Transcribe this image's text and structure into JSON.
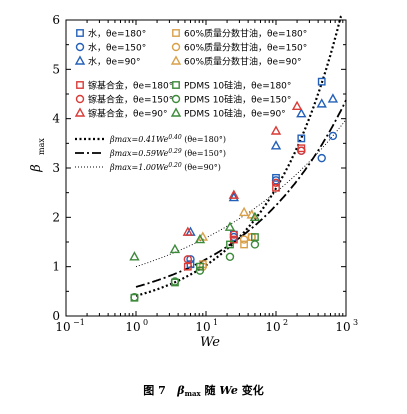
{
  "chart_data": {
    "type": "scatter",
    "xlabel": "We",
    "ylabel_main": "β",
    "ylabel_sub": "max",
    "xscale": "log",
    "xlim": [
      0.1,
      1000
    ],
    "ylim": [
      0,
      6
    ],
    "x_ticks": [
      {
        "value": 0.1,
        "base": "10",
        "exp": "−1"
      },
      {
        "value": 1,
        "base": "10",
        "exp": "0"
      },
      {
        "value": 10,
        "base": "10",
        "exp": "1"
      },
      {
        "value": 100,
        "base": "10",
        "exp": "2"
      },
      {
        "value": 1000,
        "base": "10",
        "exp": "3"
      }
    ],
    "y_ticks": [
      "0",
      "1",
      "2",
      "3",
      "4",
      "5",
      "6"
    ],
    "grid": false,
    "legend": [
      {
        "series": "water-180",
        "text": "水，θe=180°"
      },
      {
        "series": "glycerol-180",
        "text": "60%质量分数甘油，θe=180°"
      },
      {
        "series": "water-150",
        "text": "水，θe=150°"
      },
      {
        "series": "glycerol-150",
        "text": "60%质量分数甘油，θe=150°"
      },
      {
        "series": "water-90",
        "text": "水，θe=90°"
      },
      {
        "series": "glycerol-90",
        "text": "60%质量分数甘油，θe=90°"
      },
      {
        "series": "galinstan-180",
        "text": "镓基合金，θe=180°"
      },
      {
        "series": "pdms-180",
        "text": "PDMS 10硅油，θe=180°"
      },
      {
        "series": "galinstan-150",
        "text": "镓基合金，θe=150°"
      },
      {
        "series": "pdms-150",
        "text": "PDMS 10硅油，θe=150°"
      },
      {
        "series": "galinstan-90",
        "text": "镓基合金，θe=90°"
      },
      {
        "series": "pdms-90",
        "text": "PDMS 10硅油，θe=90°"
      }
    ],
    "series": [
      {
        "id": "water-180",
        "marker": "square",
        "color": "#2460b8",
        "points": [
          [
            6,
            1.05
          ],
          [
            25,
            1.65
          ],
          [
            100,
            2.8
          ],
          [
            230,
            3.6
          ],
          [
            450,
            4.75
          ]
        ]
      },
      {
        "id": "water-150",
        "marker": "circle",
        "color": "#2460b8",
        "points": [
          [
            6,
            1.15
          ],
          [
            25,
            1.6
          ],
          [
            100,
            2.75
          ],
          [
            230,
            3.35
          ],
          [
            450,
            3.2
          ],
          [
            650,
            3.65
          ]
        ]
      },
      {
        "id": "water-90",
        "marker": "triangle",
        "color": "#2460b8",
        "points": [
          [
            6,
            1.7
          ],
          [
            25,
            2.4
          ],
          [
            100,
            3.45
          ],
          [
            230,
            4.1
          ],
          [
            450,
            4.3
          ],
          [
            650,
            4.4
          ]
        ]
      },
      {
        "id": "glycerol-180",
        "marker": "square",
        "color": "#d9a04a",
        "points": [
          [
            9,
            1.05
          ],
          [
            35,
            1.45
          ],
          [
            45,
            1.6
          ]
        ]
      },
      {
        "id": "glycerol-150",
        "marker": "circle",
        "color": "#d9a04a",
        "points": [
          [
            9,
            1.0
          ],
          [
            35,
            1.55
          ],
          [
            45,
            1.6
          ]
        ]
      },
      {
        "id": "glycerol-90",
        "marker": "triangle",
        "color": "#d9a04a",
        "points": [
          [
            9,
            1.6
          ],
          [
            35,
            2.1
          ],
          [
            45,
            2.05
          ]
        ]
      },
      {
        "id": "galinstan-180",
        "marker": "square",
        "color": "#d93a36",
        "points": [
          [
            5.5,
            1.0
          ],
          [
            25,
            1.55
          ],
          [
            100,
            2.6
          ],
          [
            230,
            3.4
          ]
        ]
      },
      {
        "id": "galinstan-150",
        "marker": "circle",
        "color": "#d93a36",
        "points": [
          [
            5.5,
            1.15
          ],
          [
            25,
            1.65
          ],
          [
            100,
            2.7
          ],
          [
            230,
            3.35
          ]
        ]
      },
      {
        "id": "galinstan-90",
        "marker": "triangle",
        "color": "#d93a36",
        "points": [
          [
            5.5,
            1.7
          ],
          [
            25,
            2.45
          ],
          [
            100,
            3.75
          ],
          [
            200,
            4.25
          ]
        ]
      },
      {
        "id": "pdms-180",
        "marker": "square",
        "color": "#3c8a3a",
        "points": [
          [
            0.95,
            0.37
          ],
          [
            3.6,
            0.68
          ],
          [
            8.2,
            1.0
          ],
          [
            22,
            1.45
          ],
          [
            50,
            1.6
          ]
        ]
      },
      {
        "id": "pdms-150",
        "marker": "circle",
        "color": "#3c8a3a",
        "points": [
          [
            0.95,
            0.38
          ],
          [
            3.6,
            0.7
          ],
          [
            8.2,
            0.92
          ],
          [
            22,
            1.2
          ],
          [
            50,
            1.45
          ]
        ]
      },
      {
        "id": "pdms-90",
        "marker": "triangle",
        "color": "#3c8a3a",
        "points": [
          [
            0.95,
            1.2
          ],
          [
            3.6,
            1.35
          ],
          [
            8.2,
            1.55
          ],
          [
            22,
            1.8
          ],
          [
            50,
            2.0
          ]
        ]
      }
    ],
    "fits": [
      {
        "id": "fit-180",
        "coef": 0.41,
        "exp": 0.4,
        "style": "dotted",
        "label": "βmax=0.41We^0.40 (θe=180°)",
        "label_main": "βmax=0.41We",
        "label_exp": "0.40",
        "label_tail": " (θe=180°)"
      },
      {
        "id": "fit-150",
        "coef": 0.59,
        "exp": 0.29,
        "style": "dashdot",
        "label": "βmax=0.59We^0.29 (θe=150°)",
        "label_main": "βmax=0.59We",
        "label_exp": "0.29",
        "label_tail": " (θe=150°)"
      },
      {
        "id": "fit-90",
        "coef": 1.0,
        "exp": 0.2,
        "style": "fine-dotted",
        "label": "βmax=1.00We^0.20 (θe=90°)",
        "label_main": "βmax=1.00We",
        "label_exp": "0.20",
        "label_tail": " (θe=90°)"
      }
    ]
  },
  "caption": {
    "figure_no": "图 7",
    "beta": "β",
    "beta_sub": "max",
    "middle": " 随 ",
    "we": "We",
    "tail": " 变化"
  }
}
